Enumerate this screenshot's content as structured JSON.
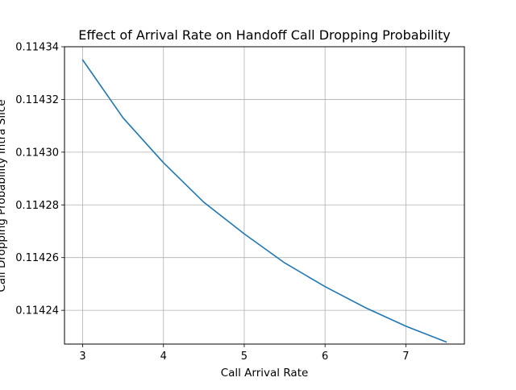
{
  "chart_data": {
    "type": "line",
    "title": "Effect of Arrival Rate on Handoff Call Dropping Probability",
    "xlabel": "Call Arrival Rate",
    "ylabel": "Call Dropping Probability Intra Slice",
    "x": [
      3.0,
      3.5,
      4.0,
      4.5,
      5.0,
      5.5,
      6.0,
      6.5,
      7.0,
      7.5
    ],
    "series": [
      {
        "values": [
          0.114335,
          0.114313,
          0.114296,
          0.114281,
          0.114269,
          0.114258,
          0.114249,
          0.114241,
          0.114234,
          0.114228
        ],
        "color": "#1f77b4"
      }
    ],
    "xlim": [
      2.775,
      7.725
    ],
    "ylim": [
      0.1142272,
      0.11434
    ],
    "xticks": [
      3,
      4,
      5,
      6,
      7
    ],
    "xtick_labels": [
      "3",
      "4",
      "5",
      "6",
      "7"
    ],
    "yticks": [
      0.11424,
      0.11426,
      0.11428,
      0.1143,
      0.11432,
      0.11434
    ],
    "ytick_labels": [
      "0.11424",
      "0.11426",
      "0.11428",
      "0.11430",
      "0.11432",
      "0.11434"
    ],
    "grid": true,
    "colors": {
      "line": "#1f77b4",
      "grid": "#b0b0b0",
      "axes": "#000000",
      "background": "#ffffff"
    }
  }
}
